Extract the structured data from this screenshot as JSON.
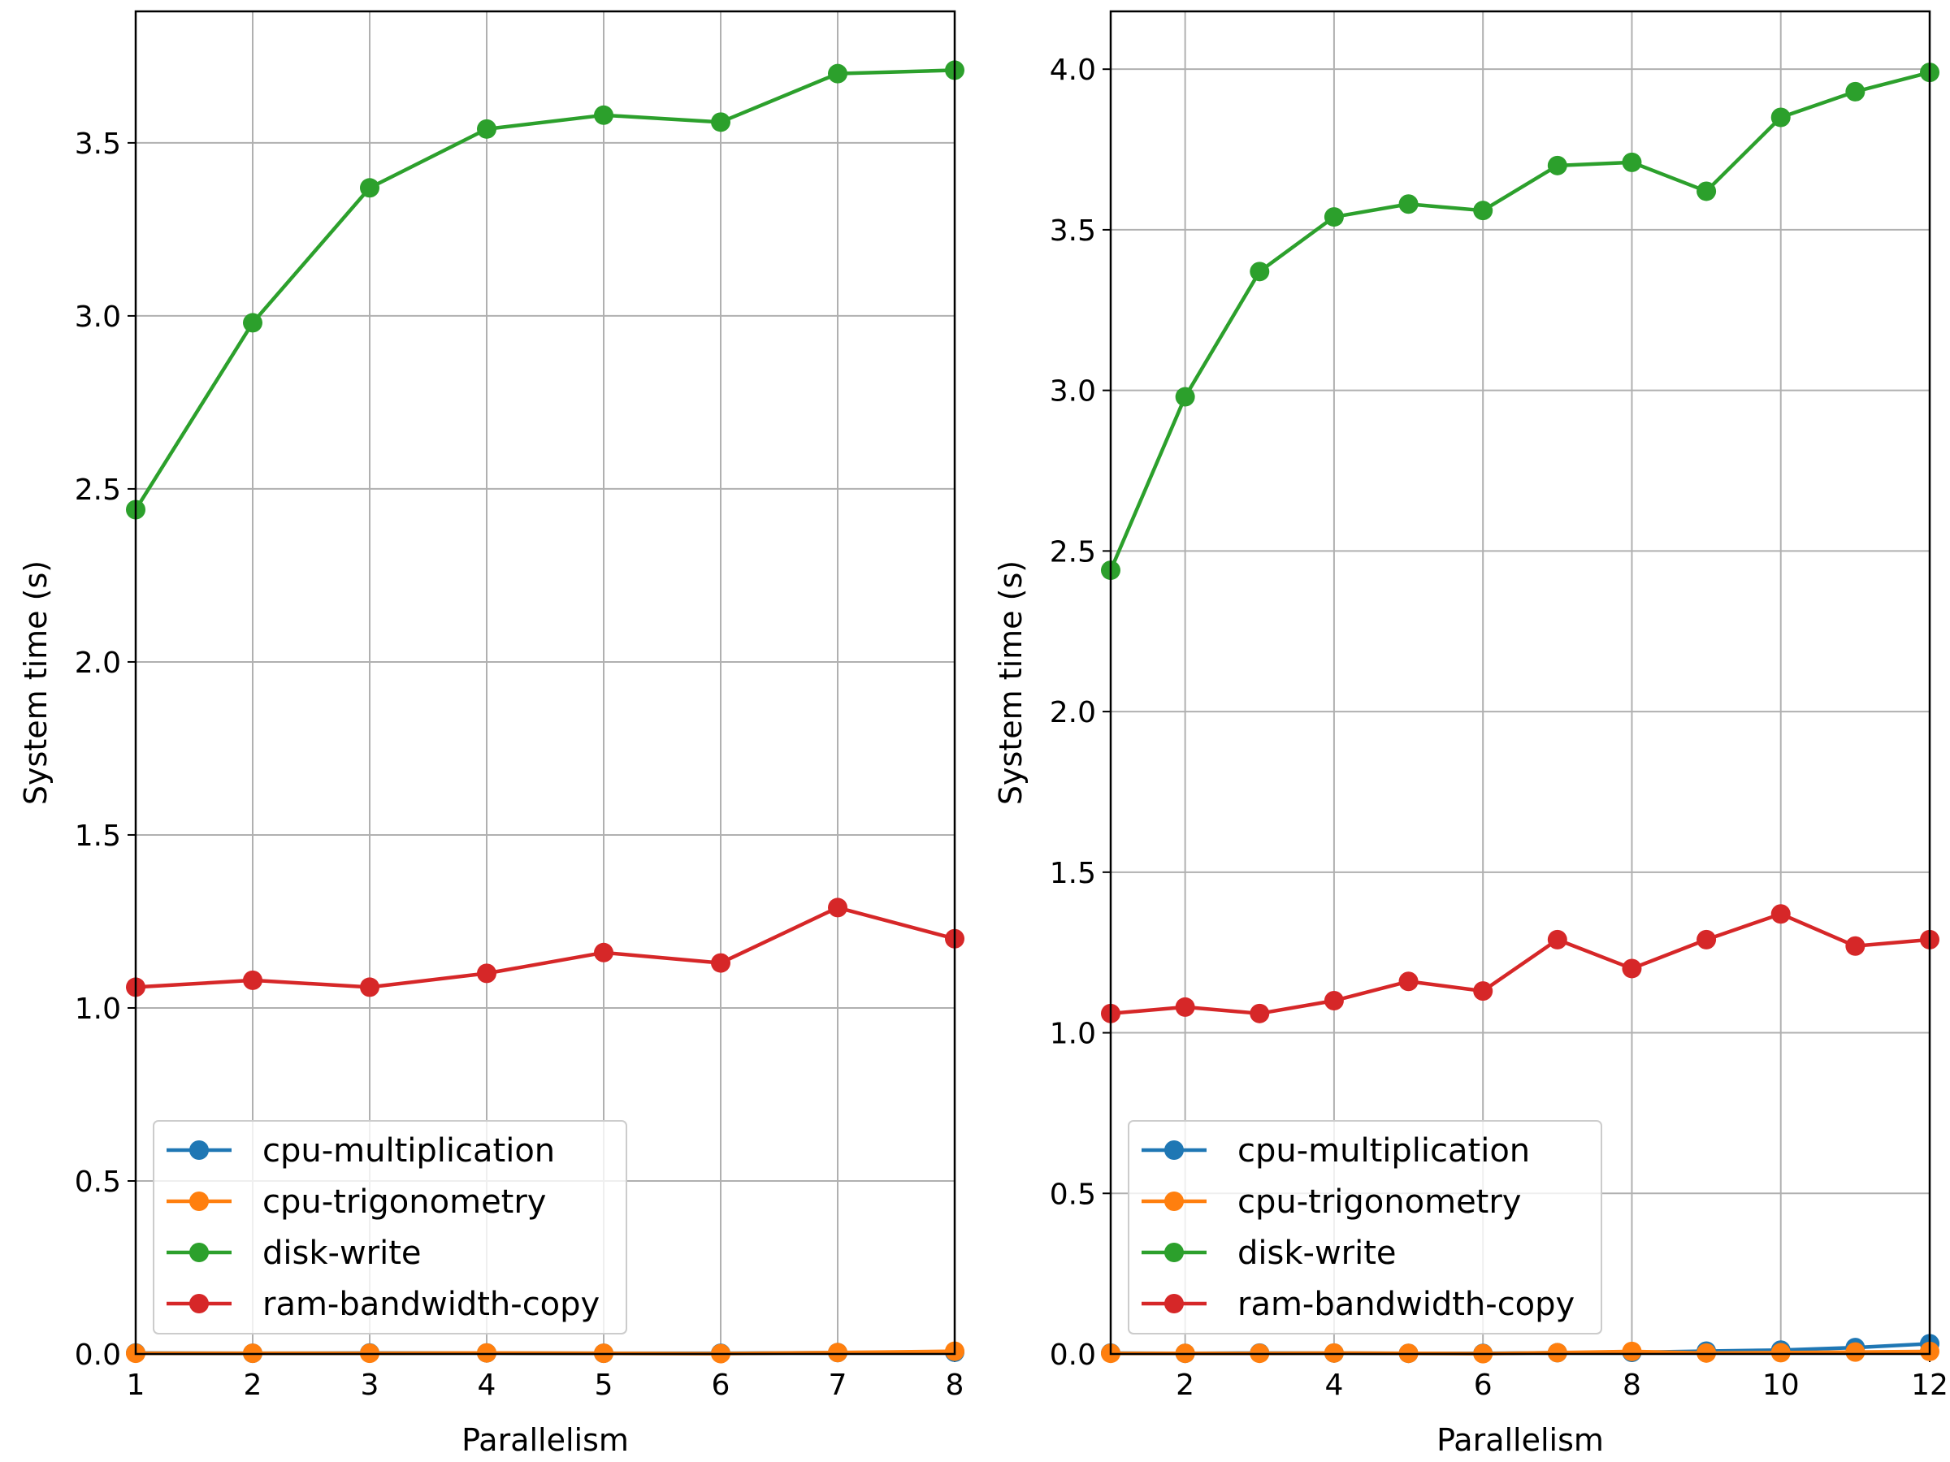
{
  "chart_data": [
    {
      "type": "line",
      "xlabel": "Parallelism",
      "ylabel": "System time (s)",
      "xlim": [
        1,
        8
      ],
      "ylim": [
        0,
        3.88
      ],
      "xticks": [
        "1",
        "2",
        "3",
        "4",
        "5",
        "6",
        "7",
        "8"
      ],
      "yticks": [
        "0.0",
        "0.5",
        "1.0",
        "1.5",
        "2.0",
        "2.5",
        "3.0",
        "3.5"
      ],
      "grid": true,
      "legend_position": "lower-left",
      "x": [
        1,
        2,
        3,
        4,
        5,
        6,
        7,
        8
      ],
      "series": [
        {
          "name": "cpu-multiplication",
          "color": "#1f77b4",
          "values": [
            0.003,
            0.002,
            0.003,
            0.003,
            0.002,
            0.002,
            0.004,
            0.005
          ]
        },
        {
          "name": "cpu-trigonometry",
          "color": "#ff7f0e",
          "values": [
            0.002,
            0.002,
            0.002,
            0.003,
            0.002,
            0.001,
            0.004,
            0.008
          ]
        },
        {
          "name": "disk-write",
          "color": "#2ca02c",
          "values": [
            2.44,
            2.98,
            3.37,
            3.54,
            3.58,
            3.56,
            3.7,
            3.71
          ]
        },
        {
          "name": "ram-bandwidth-copy",
          "color": "#d62728",
          "values": [
            1.06,
            1.08,
            1.06,
            1.1,
            1.16,
            1.13,
            1.29,
            1.2
          ]
        }
      ]
    },
    {
      "type": "line",
      "xlabel": "Parallelism",
      "ylabel": "System time (s)",
      "xlim": [
        1,
        12
      ],
      "ylim": [
        0,
        4.18
      ],
      "xticks": [
        "2",
        "4",
        "6",
        "8",
        "10",
        "12"
      ],
      "yticks": [
        "0.0",
        "0.5",
        "1.0",
        "1.5",
        "2.0",
        "2.5",
        "3.0",
        "3.5",
        "4.0"
      ],
      "grid": true,
      "legend_position": "lower-left",
      "x": [
        1,
        2,
        3,
        4,
        5,
        6,
        7,
        8,
        9,
        10,
        11,
        12
      ],
      "series": [
        {
          "name": "cpu-multiplication",
          "color": "#1f77b4",
          "values": [
            0.003,
            0.002,
            0.003,
            0.003,
            0.002,
            0.002,
            0.004,
            0.005,
            0.009,
            0.012,
            0.02,
            0.032
          ]
        },
        {
          "name": "cpu-trigonometry",
          "color": "#ff7f0e",
          "values": [
            0.002,
            0.002,
            0.002,
            0.003,
            0.002,
            0.001,
            0.004,
            0.008,
            0.003,
            0.004,
            0.006,
            0.008
          ]
        },
        {
          "name": "disk-write",
          "color": "#2ca02c",
          "values": [
            2.44,
            2.98,
            3.37,
            3.54,
            3.58,
            3.56,
            3.7,
            3.71,
            3.62,
            3.85,
            3.93,
            3.99
          ]
        },
        {
          "name": "ram-bandwidth-copy",
          "color": "#d62728",
          "values": [
            1.06,
            1.08,
            1.06,
            1.1,
            1.16,
            1.13,
            1.29,
            1.2,
            1.29,
            1.37,
            1.27,
            1.29
          ]
        }
      ]
    }
  ]
}
